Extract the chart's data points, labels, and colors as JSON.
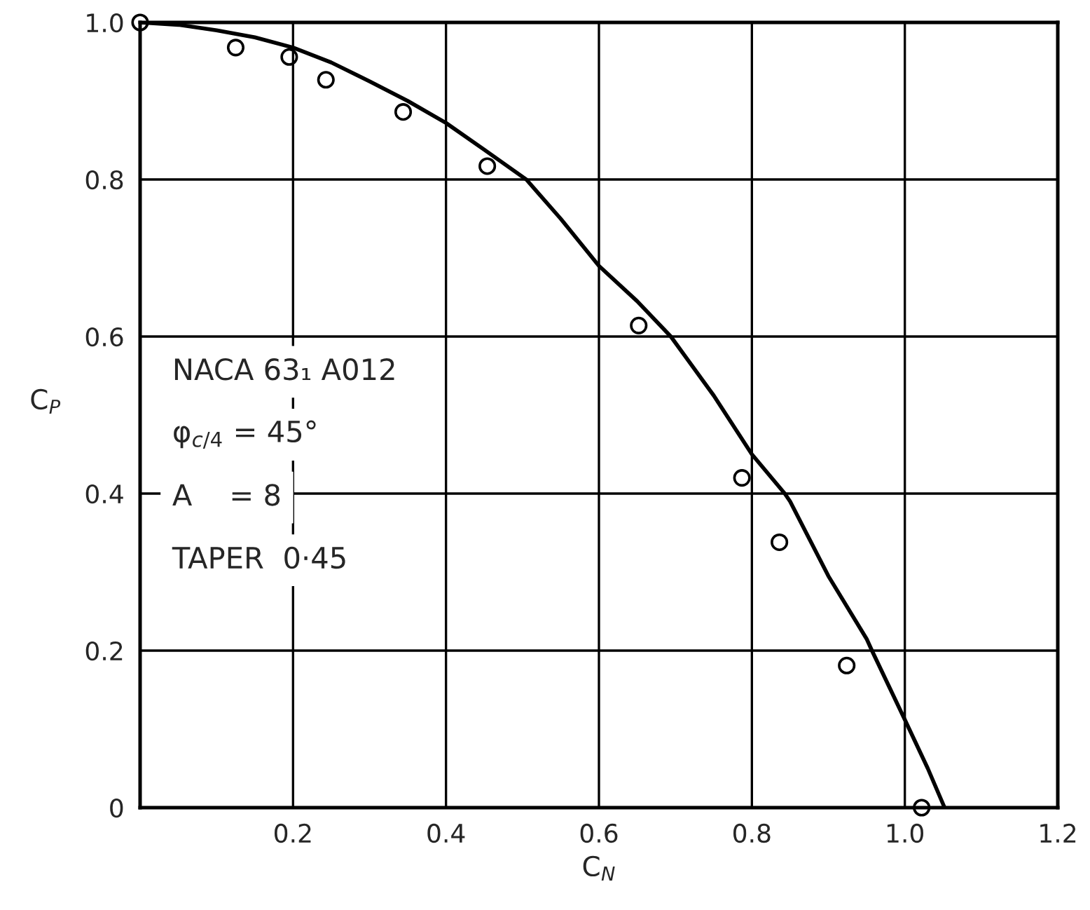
{
  "chart_data": {
    "type": "line",
    "xlabel": "C$_{N}$",
    "ylabel": "C$_{P}$",
    "xlim": [
      0,
      1.2
    ],
    "ylim": [
      0,
      1.0
    ],
    "xticks": [
      {
        "value": 0.2,
        "label": "0.2"
      },
      {
        "value": 0.4,
        "label": "0.4"
      },
      {
        "value": 0.6,
        "label": "0.6"
      },
      {
        "value": 0.8,
        "label": "0.8"
      },
      {
        "value": 1.0,
        "label": "1.0"
      },
      {
        "value": 1.2,
        "label": "1.2"
      }
    ],
    "yticks": [
      0,
      {
        "value": 0.2,
        "label": "0.2"
      },
      {
        "value": 0.4,
        "label": "0.4"
      },
      {
        "value": 0.6,
        "label": "0.6"
      },
      {
        "value": 0.8,
        "label": "0.8"
      },
      {
        "value": 1.0,
        "label": "1.0"
      }
    ],
    "grid": true,
    "series": [
      {
        "color": "#000000",
        "marker": "none",
        "line_style": "solid",
        "x": [
          0,
          0.05,
          0.1,
          0.15,
          0.2,
          0.25,
          0.3,
          0.35,
          0.4,
          0.45,
          0.505,
          0.55,
          0.6,
          0.65,
          0.694,
          0.75,
          0.8,
          0.843,
          0.85,
          0.9,
          0.95,
          0.957,
          1.0,
          1.03,
          1.052
        ],
        "values": [
          1.0,
          0.997,
          0.99,
          0.981,
          0.968,
          0.949,
          0.925,
          0.9,
          0.872,
          0.838,
          0.8,
          0.75,
          0.69,
          0.645,
          0.6,
          0.525,
          0.45,
          0.4,
          0.39,
          0.295,
          0.215,
          0.2,
          0.112,
          0.05,
          0.0
        ]
      },
      {
        "type": "scatter",
        "color": "#000000",
        "marker": "circle",
        "x": [
          0,
          0.125,
          0.195,
          0.243,
          0.344,
          0.454,
          0.652,
          0.787,
          0.836,
          0.924,
          1.022
        ],
        "values": [
          1.0,
          0.968,
          0.956,
          0.927,
          0.886,
          0.817,
          0.614,
          0.42,
          0.338,
          0.181,
          0.0
        ]
      }
    ],
    "annotations": [
      "NACA 63₁ A012",
      "φ$_{c/4}$ = 45°",
      "A    = 8",
      "TAPER  0·45"
    ]
  }
}
